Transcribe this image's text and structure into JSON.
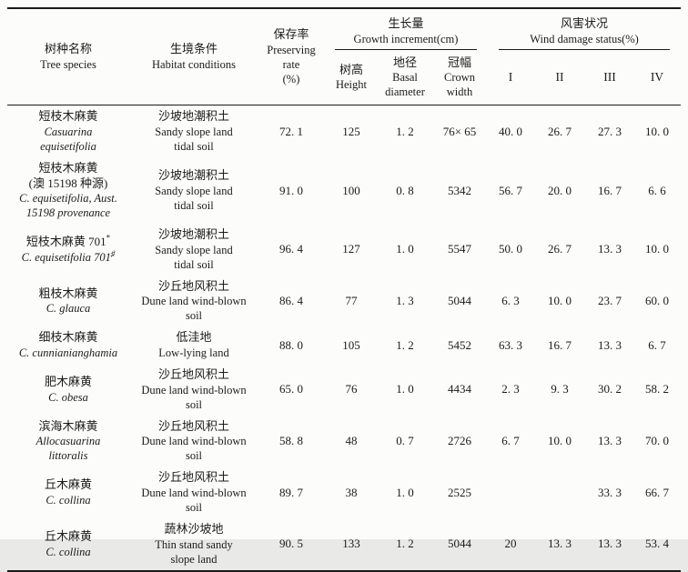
{
  "table": {
    "header": {
      "species_cn": "树种名称",
      "species_en": "Tree species",
      "habitat_cn": "生境条件",
      "habitat_en": "Habitat conditions",
      "preserving_cn": "保存率",
      "preserving_en1": "Preserving",
      "preserving_en2": "rate",
      "preserving_en3": "(%)",
      "growth_group_cn": "生长量",
      "growth_group_en": "Growth increment(cm)",
      "height_cn": "树高",
      "height_en": "Height",
      "basal_cn": "地径",
      "basal_en1": "Basal",
      "basal_en2": "diameter",
      "crown_cn": "冠幅",
      "crown_en1": "Crown",
      "crown_en2": "width",
      "wind_group_cn": "风害状况",
      "wind_group_en": "Wind damage status(%)",
      "class1": "I",
      "class2": "II",
      "class3": "III",
      "class4": "IV"
    },
    "rows": [
      {
        "name_cn": "短枝木麻黄",
        "name_cn_sup": "",
        "name_cn2": "",
        "lat1": "Casuarina",
        "lat1_sup": "",
        "lat2": "equisetifolia",
        "hab_cn": "沙坡地潮积土",
        "hab_en1": "Sandy slope land",
        "hab_en2": "tidal soil",
        "preserving": "72. 1",
        "height": "125",
        "basal": "1. 2",
        "crown": "76× 65",
        "w1": "40. 0",
        "w2": "26. 7",
        "w3": "27. 3",
        "w4": "10. 0"
      },
      {
        "name_cn": "短枝木麻黄",
        "name_cn_sup": "",
        "name_cn2": "(澳 15198 种源)",
        "lat1": "C. equisetifolia, Aust.",
        "lat1_sup": "",
        "lat2": "15198 provenance",
        "hab_cn": "沙坡地潮积土",
        "hab_en1": "Sandy slope land",
        "hab_en2": "tidal soil",
        "preserving": "91. 0",
        "height": "100",
        "basal": "0. 8",
        "crown": "5342",
        "w1": "56. 7",
        "w2": "20. 0",
        "w3": "16. 7",
        "w4": "6. 6"
      },
      {
        "name_cn": "短枝木麻黄 701",
        "name_cn_sup": "*",
        "name_cn2": "",
        "lat1": "C. equisetifolia 701",
        "lat1_sup": "♯",
        "lat2": "",
        "hab_cn": "沙坡地潮积土",
        "hab_en1": "Sandy slope land",
        "hab_en2": "tidal soil",
        "preserving": "96. 4",
        "height": "127",
        "basal": "1. 0",
        "crown": "5547",
        "w1": "50. 0",
        "w2": "26. 7",
        "w3": "13. 3",
        "w4": "10. 0"
      },
      {
        "name_cn": "粗枝木麻黄",
        "name_cn_sup": "",
        "name_cn2": "",
        "lat1": "C. glauca",
        "lat1_sup": "",
        "lat2": "",
        "hab_cn": "沙丘地风积土",
        "hab_en1": "Dune land wind-blown",
        "hab_en2": "soil",
        "preserving": "86. 4",
        "height": "77",
        "basal": "1. 3",
        "crown": "5044",
        "w1": "6. 3",
        "w2": "10. 0",
        "w3": "23. 7",
        "w4": "60. 0"
      },
      {
        "name_cn": "细枝木麻黄",
        "name_cn_sup": "",
        "name_cn2": "",
        "lat1": "C. cunnianianghamia",
        "lat1_sup": "",
        "lat2": "",
        "hab_cn": "低洼地",
        "hab_en1": "Low-lying land",
        "hab_en2": "",
        "preserving": "88. 0",
        "height": "105",
        "basal": "1. 2",
        "crown": "5452",
        "w1": "63. 3",
        "w2": "16. 7",
        "w3": "13. 3",
        "w4": "6. 7"
      },
      {
        "name_cn": "肥木麻黄",
        "name_cn_sup": "",
        "name_cn2": "",
        "lat1": "C. obesa",
        "lat1_sup": "",
        "lat2": "",
        "hab_cn": "沙丘地风积土",
        "hab_en1": "Dune land wind-blown",
        "hab_en2": "soil",
        "preserving": "65. 0",
        "height": "76",
        "basal": "1. 0",
        "crown": "4434",
        "w1": "2. 3",
        "w2": "9. 3",
        "w3": "30. 2",
        "w4": "58. 2"
      },
      {
        "name_cn": "滨海木麻黄",
        "name_cn_sup": "",
        "name_cn2": "",
        "lat1": "Allocasuarina",
        "lat1_sup": "",
        "lat2": "littoralis",
        "hab_cn": "沙丘地风积土",
        "hab_en1": "Dune land wind-blown",
        "hab_en2": "soil",
        "preserving": "58. 8",
        "height": "48",
        "basal": "0. 7",
        "crown": "2726",
        "w1": "6. 7",
        "w2": "10. 0",
        "w3": "13. 3",
        "w4": "70. 0"
      },
      {
        "name_cn": "丘木麻黄",
        "name_cn_sup": "",
        "name_cn2": "",
        "lat1": "C. collina",
        "lat1_sup": "",
        "lat2": "",
        "hab_cn": "沙丘地风积土",
        "hab_en1": "Dune land wind-blown",
        "hab_en2": "soil",
        "preserving": "89. 7",
        "height": "38",
        "basal": "1. 0",
        "crown": "2525",
        "w1": "",
        "w2": "",
        "w3": "33. 3",
        "w4": "66. 7"
      },
      {
        "name_cn": "丘木麻黄",
        "name_cn_sup": "",
        "name_cn2": "",
        "lat1": "C. collina",
        "lat1_sup": "",
        "lat2": "",
        "hab_cn": "蔬林沙坡地",
        "hab_en1": "Thin stand sandy",
        "hab_en2": "slope land",
        "preserving": "90. 5",
        "height": "133",
        "basal": "1. 2",
        "crown": "5044",
        "w1": "20",
        "w2": "13. 3",
        "w3": "13. 3",
        "w4": "53. 4"
      }
    ]
  }
}
